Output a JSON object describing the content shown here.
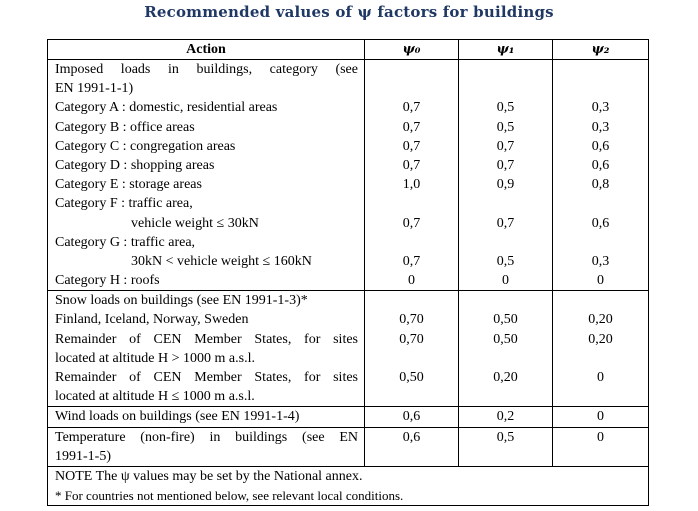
{
  "title": "Recommended values of ψ factors for buildings",
  "table": {
    "headers": {
      "action": "Action",
      "psi0": "ψ₀",
      "psi1": "ψ₁",
      "psi2": "ψ₂"
    },
    "groups": [
      {
        "lines": [
          {
            "action": "Imposed  loads  in  buildings,  category  (see",
            "p0": "",
            "p1": "",
            "p2": ""
          },
          {
            "action": "EN 1991-1-1)",
            "p0": "",
            "p1": "",
            "p2": ""
          },
          {
            "action": "Category A : domestic, residential areas",
            "p0": "0,7",
            "p1": "0,5",
            "p2": "0,3"
          },
          {
            "action": "Category B : office areas",
            "p0": "0,7",
            "p1": "0,5",
            "p2": "0,3"
          },
          {
            "action": "Category C : congregation areas",
            "p0": "0,7",
            "p1": "0,7",
            "p2": "0,6"
          },
          {
            "action": "Category D : shopping areas",
            "p0": "0,7",
            "p1": "0,7",
            "p2": "0,6"
          },
          {
            "action": "Category E : storage areas",
            "p0": "1,0",
            "p1": "0,9",
            "p2": "0,8"
          },
          {
            "action": "Category F : traffic area,",
            "p0": "",
            "p1": "",
            "p2": ""
          },
          {
            "action": "vehicle weight ≤ 30kN",
            "p0": "0,7",
            "p1": "0,7",
            "p2": "0,6"
          },
          {
            "action": "Category G : traffic area,",
            "p0": "",
            "p1": "",
            "p2": ""
          },
          {
            "action": "30kN < vehicle weight ≤ 160kN",
            "p0": "0,7",
            "p1": "0,5",
            "p2": "0,3"
          },
          {
            "action": "Category H : roofs",
            "p0": "0",
            "p1": "0",
            "p2": "0"
          }
        ]
      },
      {
        "lines": [
          {
            "action": "Snow loads on buildings (see EN 1991-1-3)*",
            "p0": "",
            "p1": "",
            "p2": ""
          },
          {
            "action": "Finland, Iceland, Norway, Sweden",
            "p0": "0,70",
            "p1": "0,50",
            "p2": "0,20"
          },
          {
            "action": "Remainder of CEN Member States, for sites",
            "p0": "0,70",
            "p1": "0,50",
            "p2": "0,20"
          },
          {
            "action": "located at altitude H > 1000 m a.s.l.",
            "p0": "",
            "p1": "",
            "p2": ""
          },
          {
            "action": "Remainder of CEN Member States, for sites",
            "p0": "0,50",
            "p1": "0,20",
            "p2": "0"
          },
          {
            "action": "located at altitude H ≤ 1000 m a.s.l.",
            "p0": "",
            "p1": "",
            "p2": ""
          }
        ]
      },
      {
        "lines": [
          {
            "action": "Wind loads on buildings (see EN 1991-1-4)",
            "p0": "0,6",
            "p1": "0,2",
            "p2": "0"
          }
        ]
      },
      {
        "lines": [
          {
            "action": "Temperature  (non-fire)  in  buildings  (see  EN",
            "p0": "0,6",
            "p1": "0,5",
            "p2": "0"
          },
          {
            "action": "1991-1-5)",
            "p0": "",
            "p1": "",
            "p2": ""
          }
        ]
      }
    ],
    "notes": [
      "NOTE  The ψ values may be set by the National annex.",
      "* For countries not mentioned below, see relevant local conditions."
    ]
  }
}
